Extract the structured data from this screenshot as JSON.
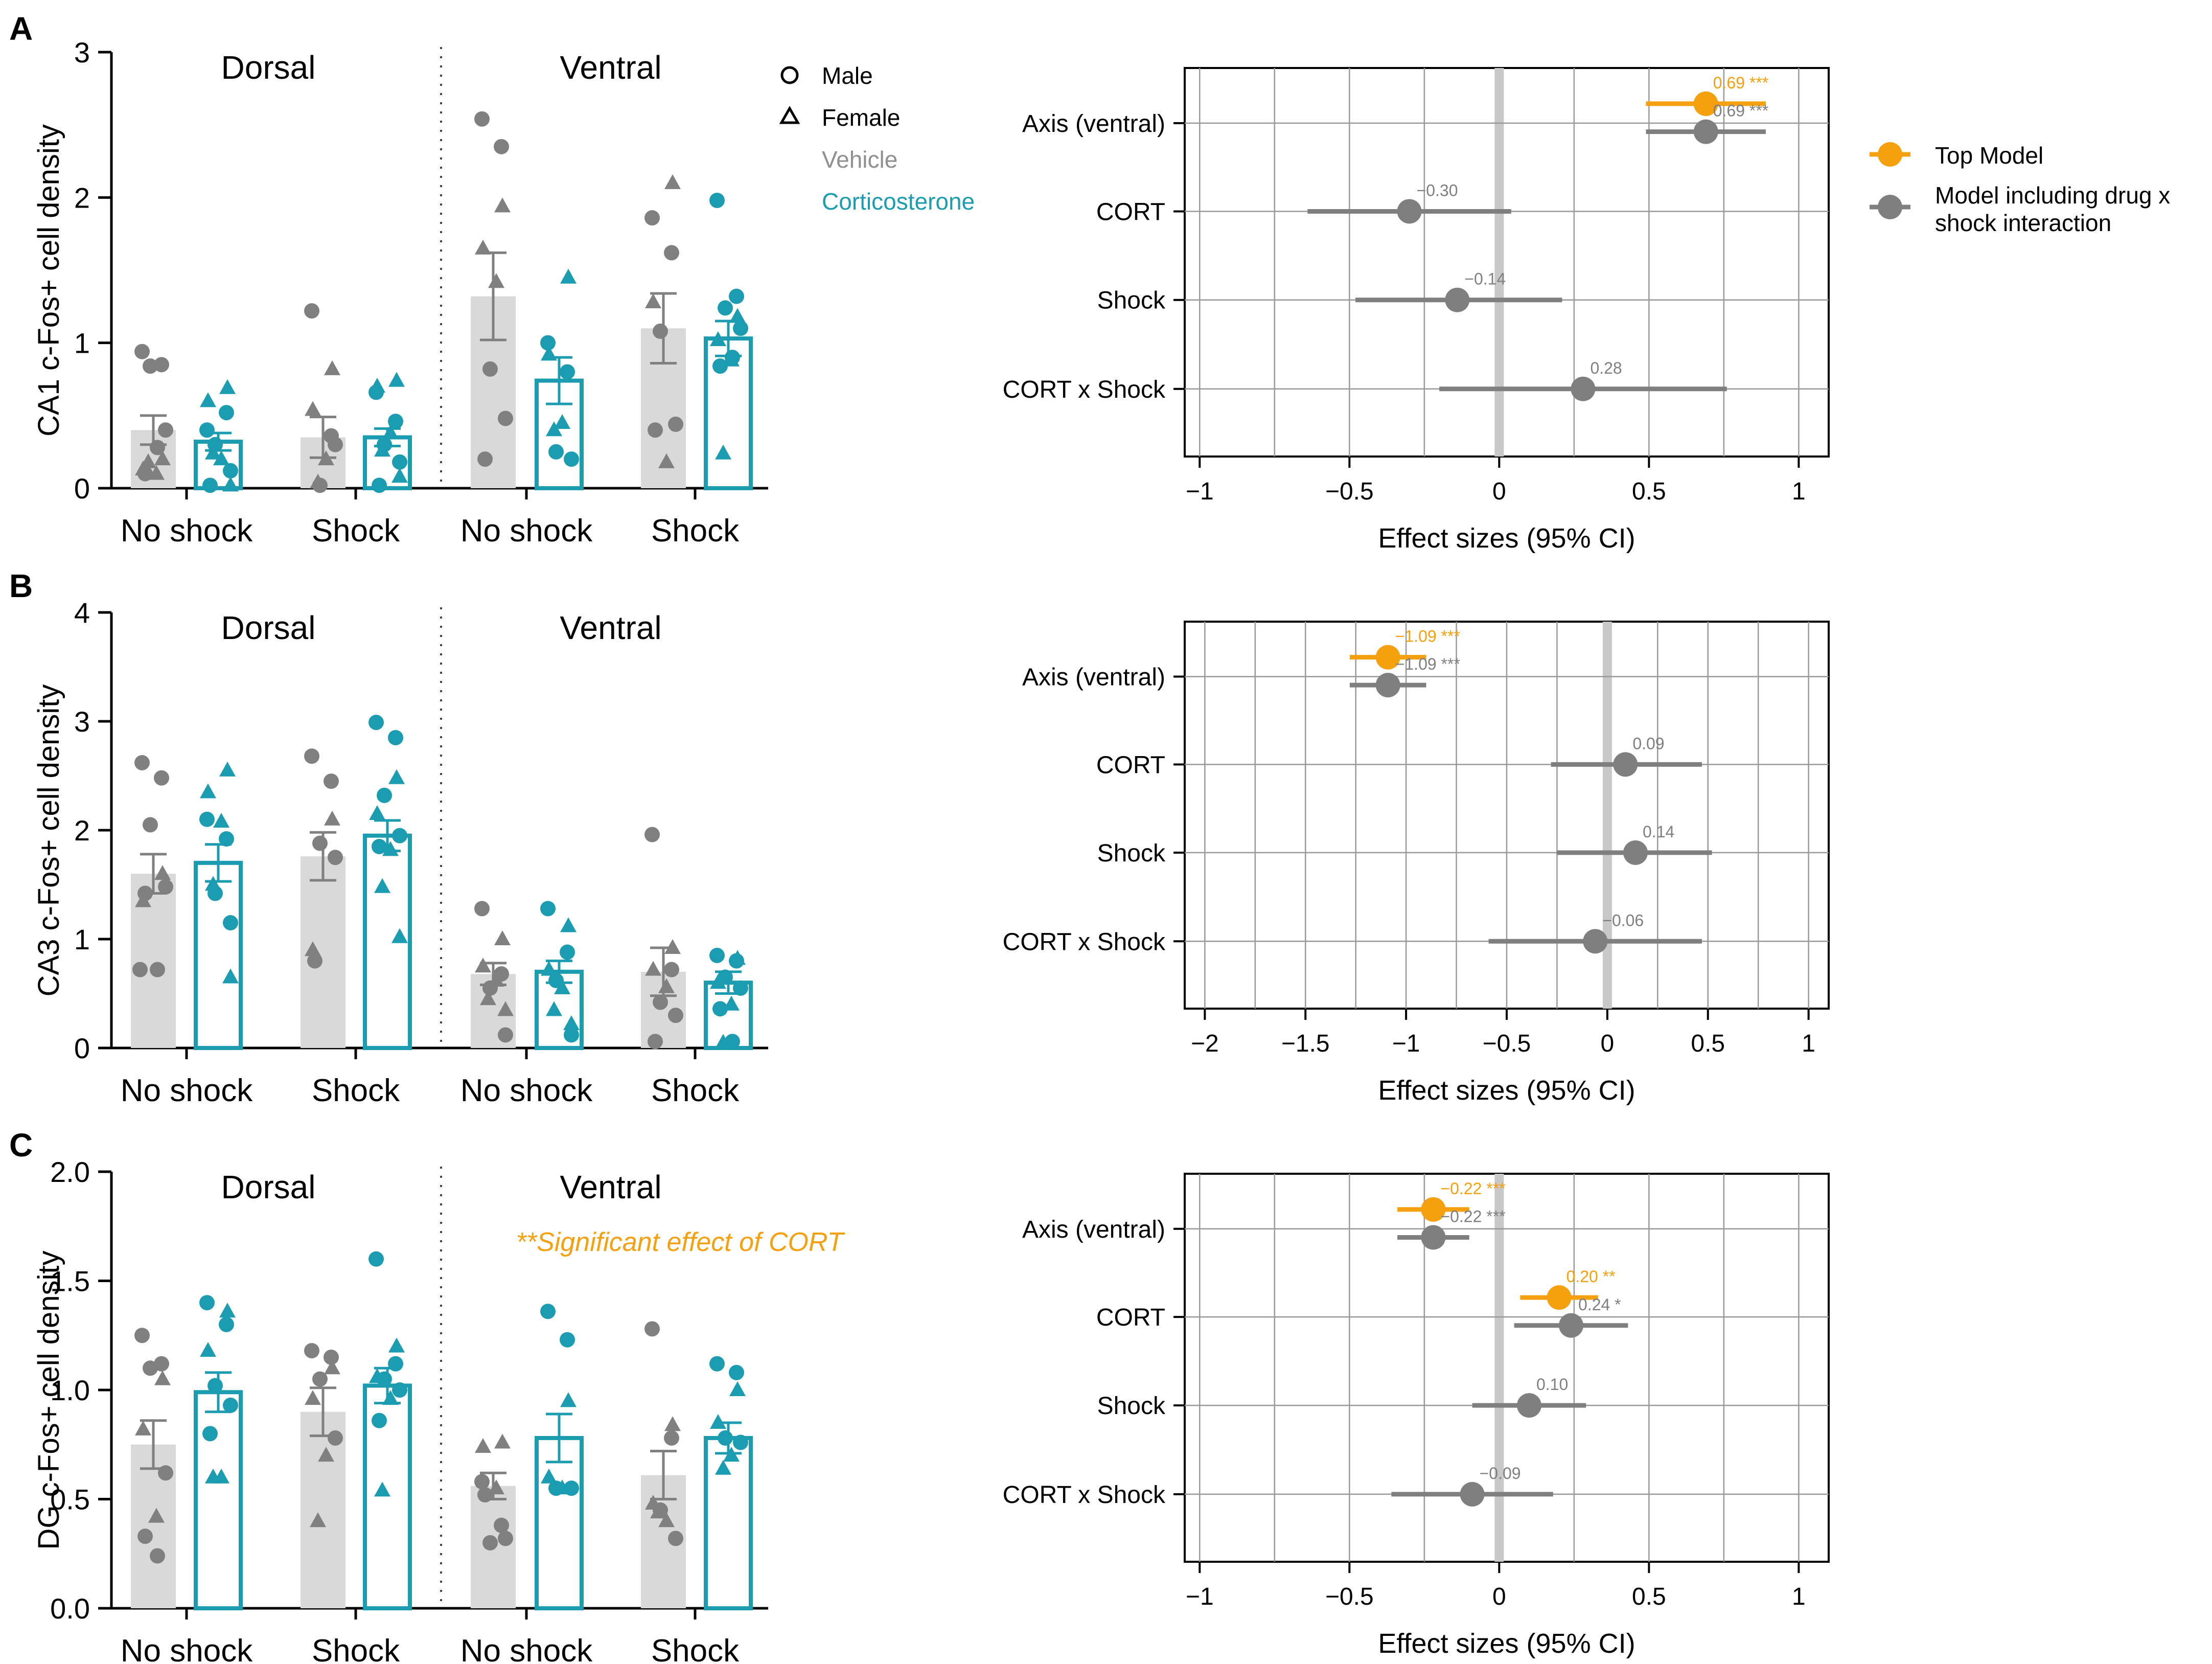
{
  "colors": {
    "vehicle_bar": "#d9d9d9",
    "vehicle_point": "#808080",
    "cort": "#1b9cb0",
    "top_model": "#f5a00f",
    "interaction_model": "#7f7f7f",
    "grid": "#999999",
    "zero_line": "#c8c8c8",
    "text": "#000000"
  },
  "legend": {
    "male": "Male",
    "female": "Female",
    "vehicle": "Vehicle",
    "cort": "Corticosterone",
    "top_model": "Top Model",
    "interaction_model_line1": "Model including drug x",
    "interaction_model_line2": "shock interaction"
  },
  "chart_data": [
    {
      "type": "bar",
      "panel": "A",
      "ylabel": "CA1 c-Fos+ cell density",
      "ylim": [
        0,
        3
      ],
      "yticks": [
        0,
        1,
        2,
        3
      ],
      "ytick_labels": [
        "0",
        "1",
        "2",
        "3"
      ],
      "sections": [
        "Dorsal",
        "Ventral"
      ],
      "categories": [
        "No shock",
        "Shock",
        "No shock",
        "Shock"
      ],
      "annotation": "",
      "groups": [
        {
          "section": "Dorsal",
          "category": "No shock",
          "drug": "Vehicle",
          "mean": 0.4,
          "sem": 0.1,
          "male": [
            0.94,
            0.85,
            0.84,
            0.4,
            0.1,
            0.28
          ],
          "female": [
            0.2,
            0.13,
            0.1,
            0.18
          ]
        },
        {
          "section": "Dorsal",
          "category": "No shock",
          "drug": "Corticosterone",
          "mean": 0.32,
          "sem": 0.06,
          "male": [
            0.4,
            0.52,
            0.3,
            0.12,
            0.02
          ],
          "female": [
            0.69,
            0.6,
            0.2,
            0.24,
            0.02
          ]
        },
        {
          "section": "Dorsal",
          "category": "Shock",
          "drug": "Vehicle",
          "mean": 0.35,
          "sem": 0.14,
          "male": [
            1.22,
            0.36,
            0.02,
            0.3
          ],
          "female": [
            0.82,
            0.54,
            0.2,
            0.04
          ]
        },
        {
          "section": "Dorsal",
          "category": "Shock",
          "drug": "Corticosterone",
          "mean": 0.35,
          "sem": 0.06,
          "male": [
            0.66,
            0.46,
            0.3,
            0.18,
            0.02
          ],
          "female": [
            0.74,
            0.7,
            0.38,
            0.26,
            0.08
          ]
        },
        {
          "section": "Ventral",
          "category": "No shock",
          "drug": "Vehicle",
          "mean": 1.32,
          "sem": 0.3,
          "male": [
            2.54,
            2.35,
            0.82,
            0.48,
            0.2
          ],
          "female": [
            1.94,
            1.65,
            1.42
          ]
        },
        {
          "section": "Ventral",
          "category": "No shock",
          "drug": "Corticosterone",
          "mean": 0.74,
          "sem": 0.16,
          "male": [
            1.0,
            0.8,
            0.25,
            0.2
          ],
          "female": [
            1.45,
            0.92,
            0.45,
            0.4
          ]
        },
        {
          "section": "Ventral",
          "category": "Shock",
          "drug": "Vehicle",
          "mean": 1.1,
          "sem": 0.24,
          "male": [
            1.86,
            1.62,
            1.08,
            0.44,
            0.4
          ],
          "female": [
            2.1,
            1.28,
            0.18
          ]
        },
        {
          "section": "Ventral",
          "category": "Shock",
          "drug": "Corticosterone",
          "mean": 1.03,
          "sem": 0.12,
          "male": [
            1.98,
            1.32,
            1.24,
            1.1,
            0.84,
            0.9
          ],
          "female": [
            1.18,
            1.02,
            0.88,
            0.24
          ]
        }
      ]
    },
    {
      "type": "bar",
      "panel": "B",
      "ylabel": "CA3 c-Fos+ cell density",
      "ylim": [
        0,
        4
      ],
      "yticks": [
        0,
        1,
        2,
        3,
        4
      ],
      "ytick_labels": [
        "0",
        "1",
        "2",
        "3",
        "4"
      ],
      "sections": [
        "Dorsal",
        "Ventral"
      ],
      "categories": [
        "No shock",
        "Shock",
        "No shock",
        "Shock"
      ],
      "annotation": "",
      "groups": [
        {
          "section": "Dorsal",
          "category": "No shock",
          "drug": "Vehicle",
          "mean": 1.6,
          "sem": 0.18,
          "male": [
            2.62,
            2.48,
            2.05,
            1.48,
            1.42,
            0.72,
            0.72
          ],
          "female": [
            1.6,
            1.35
          ]
        },
        {
          "section": "Dorsal",
          "category": "No shock",
          "drug": "Corticosterone",
          "mean": 1.7,
          "sem": 0.17,
          "male": [
            2.1,
            1.92,
            1.42,
            1.15
          ],
          "female": [
            2.55,
            2.35,
            2.08,
            1.5,
            0.65
          ]
        },
        {
          "section": "Dorsal",
          "category": "Shock",
          "drug": "Vehicle",
          "mean": 1.76,
          "sem": 0.22,
          "male": [
            2.68,
            2.45,
            1.88,
            1.75,
            0.8
          ],
          "female": [
            2.1,
            0.9
          ]
        },
        {
          "section": "Dorsal",
          "category": "Shock",
          "drug": "Corticosterone",
          "mean": 1.95,
          "sem": 0.14,
          "male": [
            2.99,
            2.85,
            2.32,
            1.95,
            1.85
          ],
          "female": [
            2.48,
            2.15,
            1.82,
            1.48,
            1.02
          ]
        },
        {
          "section": "Ventral",
          "category": "No shock",
          "drug": "Vehicle",
          "mean": 0.68,
          "sem": 0.1,
          "male": [
            1.28,
            0.68,
            0.55,
            0.12
          ],
          "female": [
            1.0,
            0.75,
            0.62,
            0.45,
            0.35
          ]
        },
        {
          "section": "Ventral",
          "category": "No shock",
          "drug": "Corticosterone",
          "mean": 0.7,
          "sem": 0.1,
          "male": [
            1.28,
            0.88,
            0.62,
            0.12
          ],
          "female": [
            1.12,
            0.72,
            0.55,
            0.35,
            0.22
          ]
        },
        {
          "section": "Ventral",
          "category": "Shock",
          "drug": "Vehicle",
          "mean": 0.7,
          "sem": 0.22,
          "male": [
            1.96,
            0.72,
            0.42,
            0.3,
            0.06
          ],
          "female": [
            0.92,
            0.72,
            0.56
          ]
        },
        {
          "section": "Ventral",
          "category": "Shock",
          "drug": "Corticosterone",
          "mean": 0.6,
          "sem": 0.1,
          "male": [
            0.85,
            0.8,
            0.65,
            0.55,
            0.36,
            0.06
          ],
          "female": [
            0.82,
            0.6,
            0.4,
            0.05
          ]
        }
      ]
    },
    {
      "type": "bar",
      "panel": "C",
      "ylabel": "DG c-Fos+ cell density",
      "ylim": [
        0,
        2
      ],
      "yticks": [
        0,
        0.5,
        1,
        1.5,
        2
      ],
      "ytick_labels": [
        "0.0",
        "0.5",
        "1.0",
        "1.5",
        "2.0"
      ],
      "sections": [
        "Dorsal",
        "Ventral"
      ],
      "categories": [
        "No shock",
        "Shock",
        "No shock",
        "Shock"
      ],
      "annotation": "**Significant effect of CORT",
      "groups": [
        {
          "section": "Dorsal",
          "category": "No shock",
          "drug": "Vehicle",
          "mean": 0.75,
          "sem": 0.11,
          "male": [
            1.25,
            1.12,
            1.1,
            0.62,
            0.33,
            0.24
          ],
          "female": [
            1.05,
            0.82,
            0.42
          ]
        },
        {
          "section": "Dorsal",
          "category": "No shock",
          "drug": "Corticosterone",
          "mean": 0.99,
          "sem": 0.09,
          "male": [
            1.4,
            1.3,
            1.02,
            0.93,
            0.8
          ],
          "female": [
            1.36,
            1.18,
            0.6,
            0.6
          ]
        },
        {
          "section": "Dorsal",
          "category": "Shock",
          "drug": "Vehicle",
          "mean": 0.9,
          "sem": 0.11,
          "male": [
            1.18,
            1.15,
            1.05,
            0.78
          ],
          "female": [
            1.1,
            0.96,
            0.7,
            0.4
          ]
        },
        {
          "section": "Dorsal",
          "category": "Shock",
          "drug": "Corticosterone",
          "mean": 1.02,
          "sem": 0.08,
          "male": [
            1.6,
            1.12,
            1.05,
            1.0,
            0.86
          ],
          "female": [
            1.2,
            1.06,
            0.96,
            0.54
          ]
        },
        {
          "section": "Ventral",
          "category": "No shock",
          "drug": "Vehicle",
          "mean": 0.56,
          "sem": 0.06,
          "male": [
            0.58,
            0.38,
            0.3,
            0.32,
            0.52
          ],
          "female": [
            0.76,
            0.74,
            0.55
          ]
        },
        {
          "section": "Ventral",
          "category": "No shock",
          "drug": "Corticosterone",
          "mean": 0.78,
          "sem": 0.11,
          "male": [
            1.36,
            1.23,
            0.55,
            0.55
          ],
          "female": [
            0.95,
            0.6,
            0.55
          ]
        },
        {
          "section": "Ventral",
          "category": "Shock",
          "drug": "Vehicle",
          "mean": 0.61,
          "sem": 0.11,
          "male": [
            1.28,
            0.78,
            0.45,
            0.32
          ],
          "female": [
            0.84,
            0.48,
            0.4,
            0.44
          ]
        },
        {
          "section": "Ventral",
          "category": "Shock",
          "drug": "Corticosterone",
          "mean": 0.78,
          "sem": 0.07,
          "male": [
            1.12,
            1.08,
            0.78,
            0.76
          ],
          "female": [
            1.0,
            0.85,
            0.7,
            0.64
          ]
        }
      ]
    },
    {
      "type": "forest",
      "panel": "A",
      "xlabel": "Effect sizes (95% CI)",
      "xlim": [
        -1.05,
        1.1
      ],
      "xticks": [
        -1,
        -0.5,
        0,
        0.5,
        1
      ],
      "xtick_labels": [
        "−1",
        "−0.5",
        "0",
        "0.5",
        "1"
      ],
      "terms": [
        "Axis (ventral)",
        "CORT",
        "Shock",
        "CORT x Shock"
      ],
      "estimates": [
        {
          "term": "Axis (ventral)",
          "model": "top",
          "est": 0.69,
          "lo": 0.49,
          "hi": 0.89,
          "label": "0.69 ***"
        },
        {
          "term": "Axis (ventral)",
          "model": "interaction",
          "est": 0.69,
          "lo": 0.49,
          "hi": 0.89,
          "label": "0.69 ***"
        },
        {
          "term": "CORT",
          "model": "interaction",
          "est": -0.3,
          "lo": -0.64,
          "hi": 0.04,
          "label": "−0.30"
        },
        {
          "term": "Shock",
          "model": "interaction",
          "est": -0.14,
          "lo": -0.48,
          "hi": 0.21,
          "label": "−0.14"
        },
        {
          "term": "CORT x Shock",
          "model": "interaction",
          "est": 0.28,
          "lo": -0.2,
          "hi": 0.76,
          "label": "0.28"
        }
      ]
    },
    {
      "type": "forest",
      "panel": "B",
      "xlabel": "Effect sizes (95% CI)",
      "xlim": [
        -2.1,
        1.1
      ],
      "xticks": [
        -2,
        -1.5,
        -1,
        -0.5,
        0,
        0.5,
        1
      ],
      "xtick_labels": [
        "−2",
        "−1.5",
        "−1",
        "−0.5",
        "0",
        "0.5",
        "1"
      ],
      "terms": [
        "Axis (ventral)",
        "CORT",
        "Shock",
        "CORT x Shock"
      ],
      "estimates": [
        {
          "term": "Axis (ventral)",
          "model": "top",
          "est": -1.09,
          "lo": -1.28,
          "hi": -0.9,
          "label": "−1.09 ***"
        },
        {
          "term": "Axis (ventral)",
          "model": "interaction",
          "est": -1.09,
          "lo": -1.28,
          "hi": -0.9,
          "label": "−1.09 ***"
        },
        {
          "term": "CORT",
          "model": "interaction",
          "est": 0.09,
          "lo": -0.28,
          "hi": 0.47,
          "label": "0.09"
        },
        {
          "term": "Shock",
          "model": "interaction",
          "est": 0.14,
          "lo": -0.25,
          "hi": 0.52,
          "label": "0.14"
        },
        {
          "term": "CORT x Shock",
          "model": "interaction",
          "est": -0.06,
          "lo": -0.59,
          "hi": 0.47,
          "label": "−0.06"
        }
      ]
    },
    {
      "type": "forest",
      "panel": "C",
      "xlabel": "Effect sizes (95% CI)",
      "xlim": [
        -1.05,
        1.1
      ],
      "xticks": [
        -1,
        -0.5,
        0,
        0.5,
        1
      ],
      "xtick_labels": [
        "−1",
        "−0.5",
        "0",
        "0.5",
        "1"
      ],
      "terms": [
        "Axis (ventral)",
        "CORT",
        "Shock",
        "CORT x Shock"
      ],
      "estimates": [
        {
          "term": "Axis (ventral)",
          "model": "top",
          "est": -0.22,
          "lo": -0.34,
          "hi": -0.1,
          "label": "−0.22 ***"
        },
        {
          "term": "Axis (ventral)",
          "model": "interaction",
          "est": -0.22,
          "lo": -0.34,
          "hi": -0.1,
          "label": "−0.22 ***"
        },
        {
          "term": "CORT",
          "model": "top",
          "est": 0.2,
          "lo": 0.07,
          "hi": 0.33,
          "label": "0.20 **"
        },
        {
          "term": "CORT",
          "model": "interaction",
          "est": 0.24,
          "lo": 0.05,
          "hi": 0.43,
          "label": "0.24 *"
        },
        {
          "term": "Shock",
          "model": "interaction",
          "est": 0.1,
          "lo": -0.09,
          "hi": 0.29,
          "label": "0.10"
        },
        {
          "term": "CORT x Shock",
          "model": "interaction",
          "est": -0.09,
          "lo": -0.36,
          "hi": 0.18,
          "label": "−0.09"
        }
      ]
    }
  ]
}
